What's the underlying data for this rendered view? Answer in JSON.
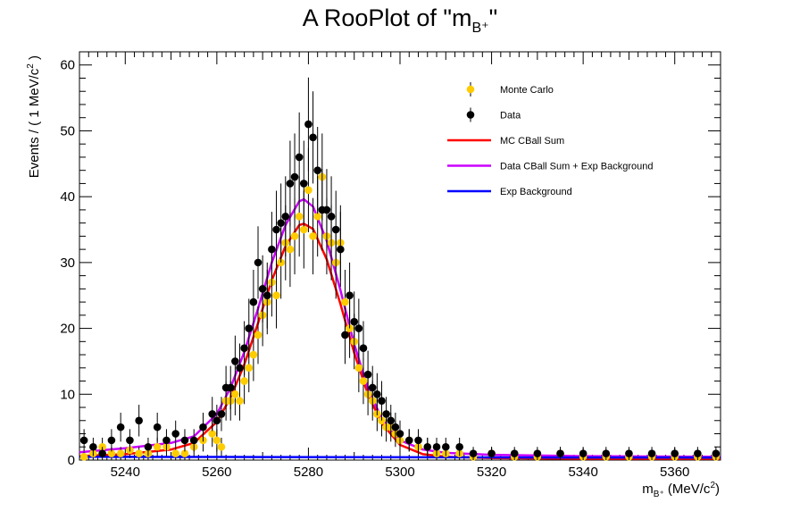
{
  "chart_data": {
    "type": "scatter",
    "title": {
      "main": "A RooPlot of \"m",
      "sub": "B⁺",
      "close": "\""
    },
    "xlabel": {
      "main": "m",
      "sub": "B⁺",
      "rest": " (MeV/c",
      "sup": "2",
      "close": ")"
    },
    "ylabel": {
      "main": "Events / ( 1 MeV/c",
      "sup": "2",
      "close": " )"
    },
    "xlim": [
      5230,
      5370
    ],
    "ylim": [
      0,
      62
    ],
    "x_ticks": [
      5240,
      5260,
      5280,
      5300,
      5320,
      5340,
      5360
    ],
    "y_ticks": [
      0,
      10,
      20,
      30,
      40,
      50,
      60
    ],
    "legend_position": "top-right",
    "legend": [
      {
        "label": "Monte Carlo",
        "kind": "marker",
        "color": "#ffcc00"
      },
      {
        "label": "Data",
        "kind": "marker",
        "color": "#000000"
      },
      {
        "label": "MC CBall Sum",
        "kind": "line",
        "color": "#ff0000"
      },
      {
        "label": "Data CBall Sum + Exp Background",
        "kind": "line",
        "color": "#cc00ff"
      },
      {
        "label": "Exp Background",
        "kind": "line",
        "color": "#0000ff"
      }
    ],
    "series": [
      {
        "name": "Monte Carlo",
        "kind": "points",
        "color": "#ffcc00",
        "x": [
          5231,
          5233,
          5235,
          5237,
          5239,
          5241,
          5243,
          5245,
          5247,
          5249,
          5251,
          5253,
          5255,
          5257,
          5259,
          5260,
          5261,
          5262,
          5263,
          5264,
          5265,
          5266,
          5267,
          5268,
          5269,
          5270,
          5271,
          5272,
          5273,
          5274,
          5275,
          5276,
          5277,
          5278,
          5279,
          5280,
          5281,
          5282,
          5283,
          5284,
          5285,
          5286,
          5287,
          5288,
          5289,
          5290,
          5291,
          5292,
          5293,
          5294,
          5295,
          5296,
          5297,
          5298,
          5299,
          5300,
          5302,
          5304,
          5306,
          5308,
          5310,
          5313,
          5316,
          5320,
          5325,
          5330,
          5335,
          5340,
          5345,
          5350,
          5355,
          5360,
          5365,
          5369
        ],
        "y": [
          0.5,
          1,
          2,
          1,
          1,
          1.5,
          1,
          1,
          2,
          2,
          1,
          1,
          2,
          3,
          4,
          3,
          2,
          9,
          9,
          10,
          9,
          12,
          14,
          16,
          19,
          22,
          24,
          27,
          25,
          30,
          33,
          32,
          34,
          37,
          35,
          41,
          34,
          37,
          43,
          34,
          33,
          30,
          33,
          24,
          20,
          18,
          14,
          12,
          10,
          9,
          7,
          6,
          5,
          5,
          4,
          3,
          3,
          2,
          2,
          1,
          1,
          1,
          0.5,
          1,
          0.5,
          0.5,
          1,
          0.5,
          0.5,
          0.5,
          0.5,
          0.5,
          0.5,
          0.5
        ],
        "yerr": [
          0.7,
          1,
          1.4,
          1,
          1,
          1.2,
          1,
          1,
          1.4,
          1.4,
          1,
          1,
          1.4,
          1.7,
          2,
          1.7,
          1.4,
          3,
          3,
          3.2,
          3,
          3.5,
          3.7,
          4,
          4.4,
          4.7,
          4.9,
          5.2,
          5,
          5.5,
          5.7,
          5.7,
          5.8,
          6.1,
          5.9,
          6.4,
          5.8,
          6.1,
          6.6,
          5.8,
          5.7,
          5.5,
          5.7,
          4.9,
          4.5,
          4.2,
          3.7,
          3.5,
          3.2,
          3,
          2.6,
          2.4,
          2.2,
          2.2,
          2,
          1.7,
          1.7,
          1.4,
          1.4,
          1,
          1,
          1,
          0.7,
          1,
          0.7,
          0.7,
          1,
          0.7,
          0.7,
          0.7,
          0.7,
          0.7,
          0.7,
          0.7
        ]
      },
      {
        "name": "Data",
        "kind": "points",
        "color": "#000000",
        "x": [
          5231,
          5233,
          5235,
          5237,
          5239,
          5241,
          5243,
          5245,
          5247,
          5249,
          5251,
          5253,
          5255,
          5257,
          5259,
          5260,
          5261,
          5262,
          5263,
          5264,
          5265,
          5266,
          5267,
          5268,
          5269,
          5270,
          5271,
          5272,
          5273,
          5274,
          5275,
          5276,
          5277,
          5278,
          5279,
          5280,
          5281,
          5282,
          5283,
          5284,
          5285,
          5286,
          5287,
          5288,
          5289,
          5290,
          5291,
          5292,
          5293,
          5294,
          5295,
          5296,
          5297,
          5298,
          5299,
          5300,
          5302,
          5304,
          5306,
          5308,
          5310,
          5313,
          5316,
          5320,
          5325,
          5330,
          5335,
          5340,
          5345,
          5350,
          5355,
          5360,
          5365,
          5369
        ],
        "y": [
          3,
          2,
          1,
          3,
          5,
          3,
          6,
          2,
          5,
          3,
          4,
          3,
          3,
          5,
          7,
          6,
          7,
          11,
          11,
          15,
          14,
          17,
          20,
          24,
          30,
          26,
          25,
          32,
          35,
          36,
          37,
          42,
          43,
          46,
          42,
          51,
          49,
          44,
          38,
          38,
          37,
          35,
          32,
          19,
          25,
          21,
          20,
          17,
          13,
          11,
          10,
          9,
          7,
          6,
          5,
          4,
          3,
          3,
          2,
          2,
          2,
          2,
          1,
          1,
          1,
          1,
          1,
          1,
          1,
          1,
          1,
          1,
          1,
          1
        ],
        "yerr": [
          1.7,
          1.4,
          1,
          1.7,
          2.2,
          1.7,
          2.4,
          1.4,
          2.2,
          1.7,
          2,
          1.7,
          1.7,
          2.2,
          2.6,
          2.4,
          2.6,
          3.3,
          3.3,
          3.9,
          3.7,
          4.1,
          4.5,
          4.9,
          5.5,
          5.1,
          5,
          5.7,
          5.9,
          6,
          6.1,
          6.5,
          6.6,
          6.8,
          6.5,
          7.1,
          7,
          6.6,
          6.2,
          6.2,
          6.1,
          5.9,
          5.7,
          4.4,
          5,
          4.6,
          4.5,
          4.1,
          3.6,
          3.3,
          3.2,
          3,
          2.6,
          2.4,
          2.2,
          2,
          1.7,
          1.7,
          1.4,
          1.4,
          1.4,
          1.4,
          1,
          1,
          1,
          1,
          1,
          1,
          1,
          1,
          1,
          1,
          1,
          1
        ]
      },
      {
        "name": "MC CBall Sum",
        "kind": "line",
        "color": "#ff0000",
        "x": [
          5230,
          5240,
          5250,
          5255,
          5260,
          5263,
          5266,
          5269,
          5272,
          5275,
          5278,
          5279,
          5281,
          5284,
          5287,
          5290,
          5293,
          5296,
          5300,
          5305,
          5310,
          5320,
          5340,
          5370
        ],
        "y": [
          0.6,
          0.9,
          1.6,
          2.6,
          5.8,
          9.5,
          14.5,
          20.8,
          27.3,
          32.5,
          35.7,
          35.9,
          35.1,
          30.5,
          23.7,
          16.3,
          10,
          5.6,
          2.3,
          0.9,
          0.5,
          0.3,
          0.2,
          0.2
        ]
      },
      {
        "name": "Data CBall Sum + Exp Background",
        "kind": "line",
        "color": "#cc00ff",
        "x": [
          5230,
          5240,
          5250,
          5255,
          5260,
          5263,
          5266,
          5269,
          5272,
          5275,
          5278,
          5279,
          5281,
          5284,
          5287,
          5290,
          5293,
          5296,
          5300,
          5305,
          5310,
          5320,
          5340,
          5370
        ],
        "y": [
          1.2,
          1.8,
          2.6,
          3.6,
          7,
          11,
          16.4,
          23,
          30,
          35.7,
          39.3,
          39.6,
          38.5,
          33.3,
          25.8,
          17.6,
          10.9,
          6.3,
          3,
          1.6,
          1.1,
          0.8,
          0.6,
          0.5
        ]
      },
      {
        "name": "Exp Background",
        "kind": "line",
        "color": "#0000ff",
        "x": [
          5230,
          5250,
          5270,
          5290,
          5310,
          5330,
          5350,
          5370
        ],
        "y": [
          0.5,
          0.48,
          0.46,
          0.44,
          0.42,
          0.4,
          0.39,
          0.38
        ]
      }
    ]
  }
}
